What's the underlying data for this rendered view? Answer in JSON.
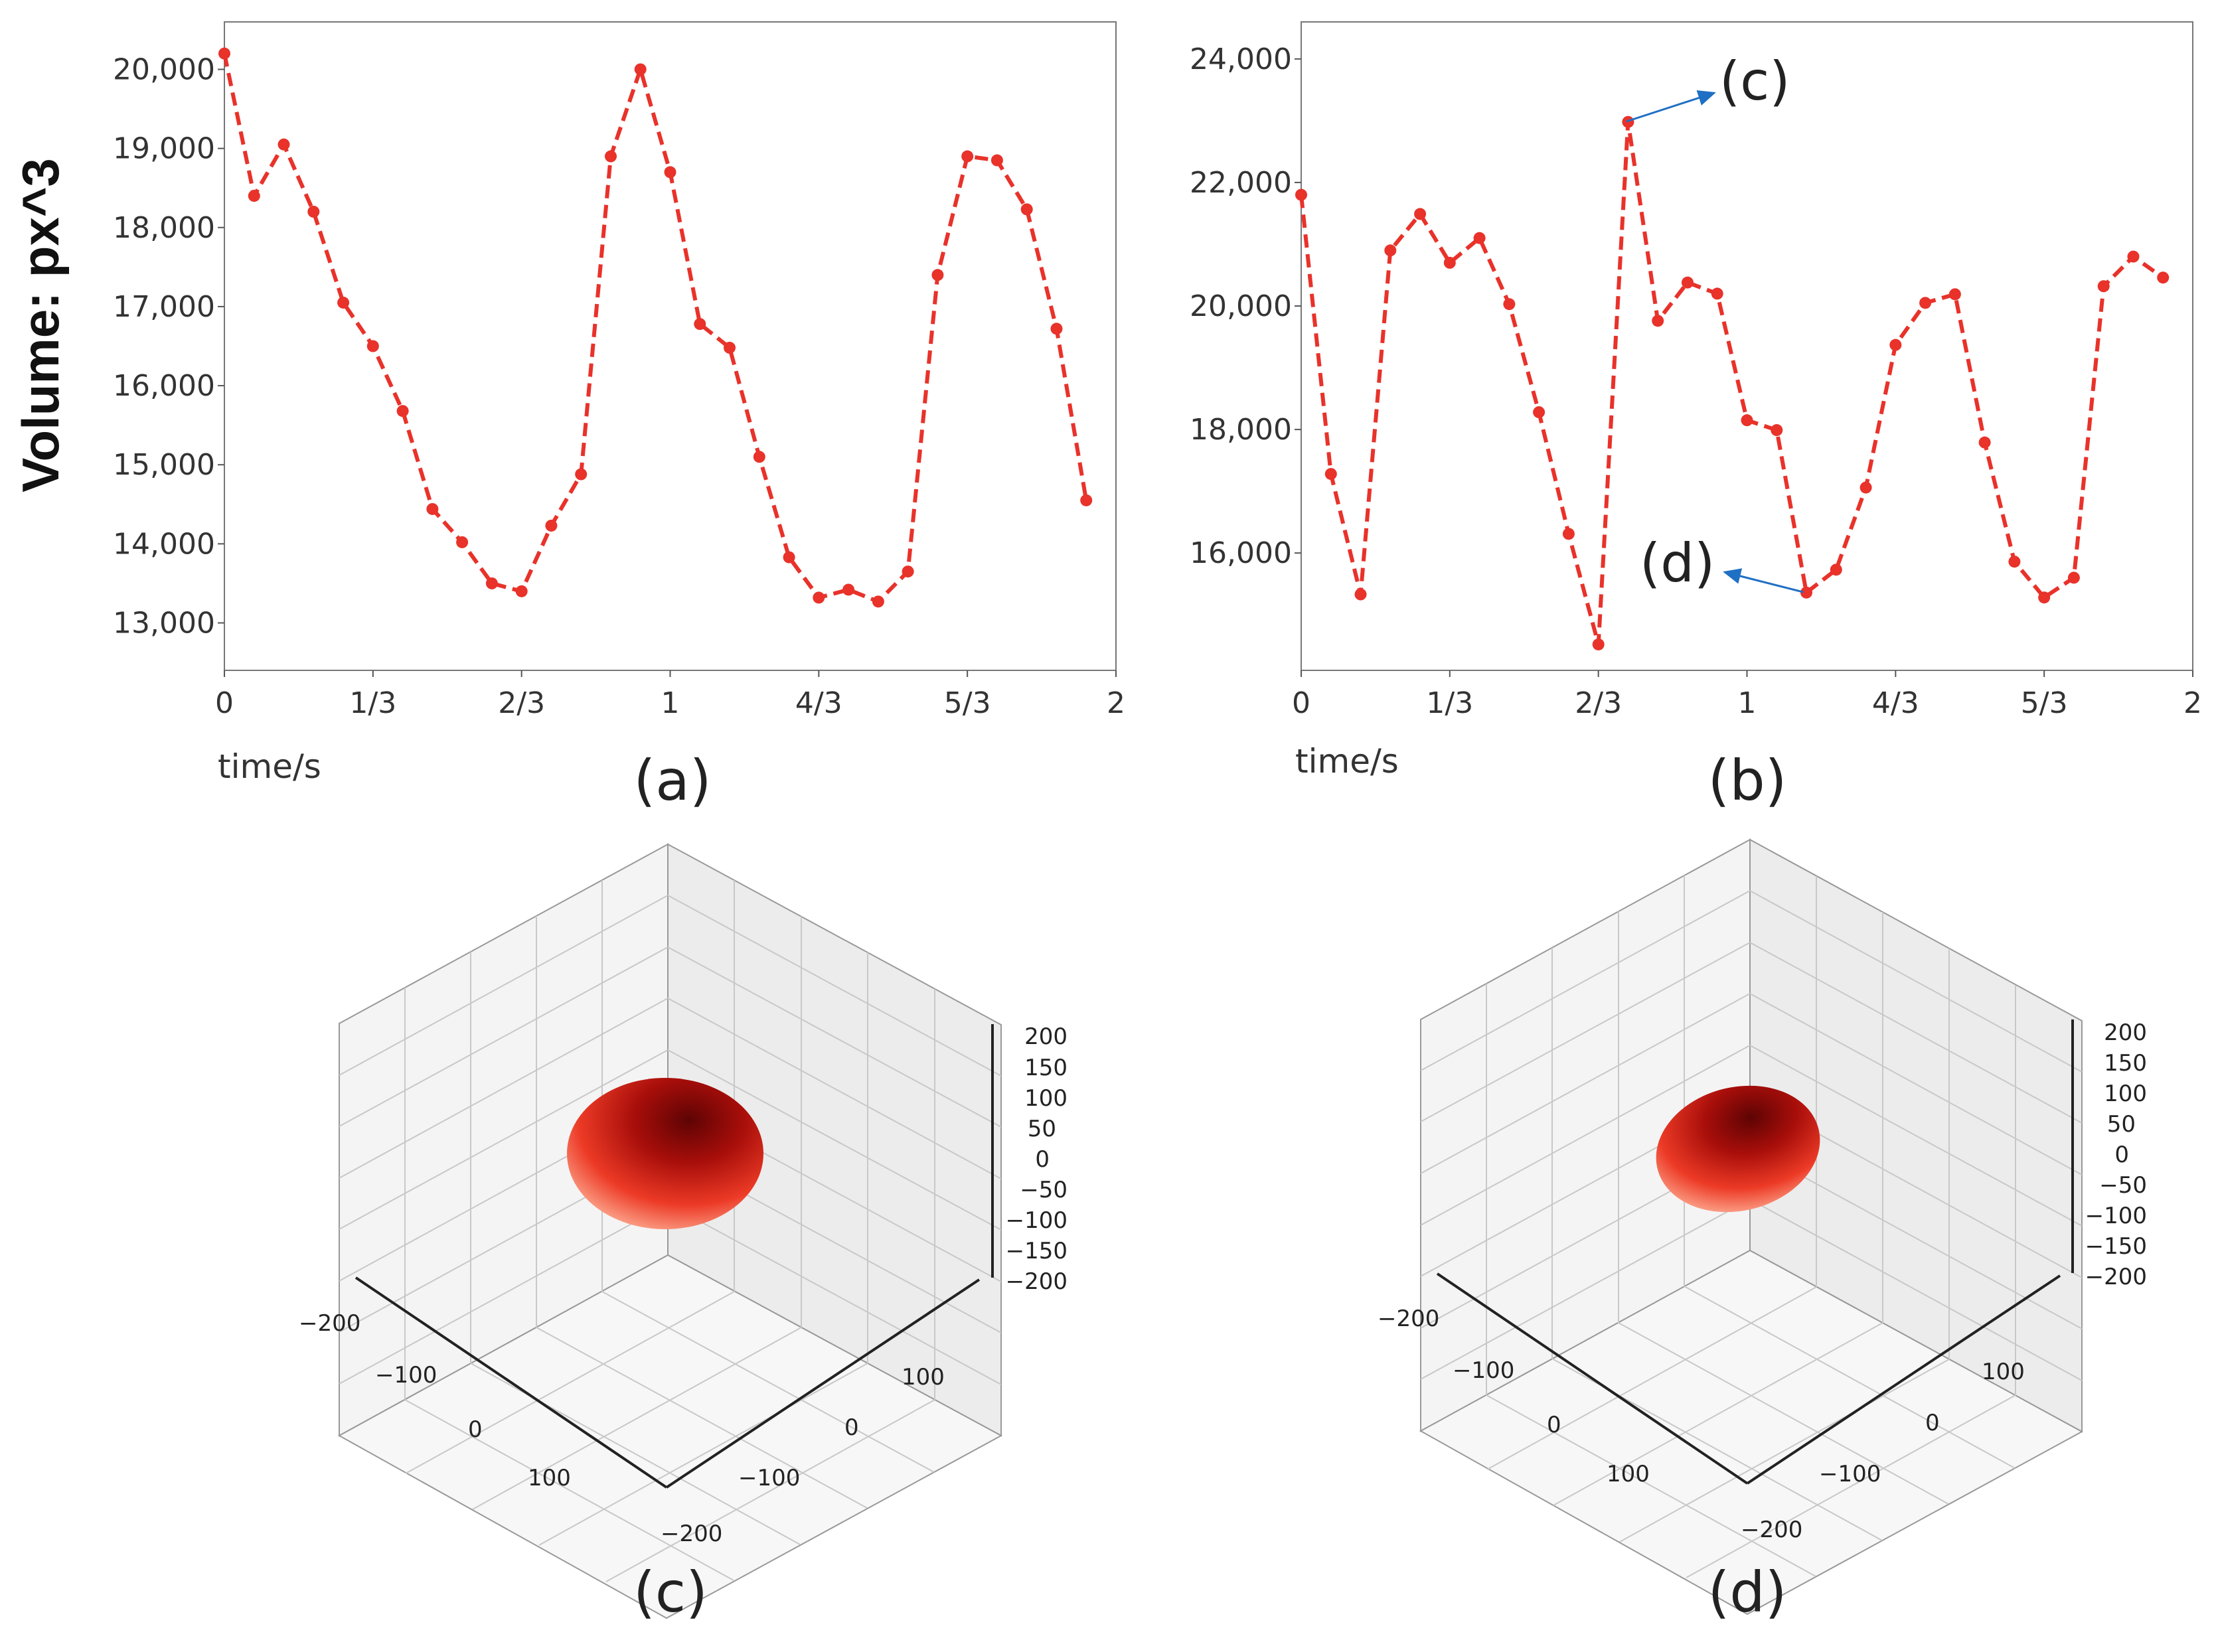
{
  "chart_data": [
    {
      "type": "line",
      "panel": "(a)",
      "caption": "(a)",
      "xlabel": "time/s",
      "ylabel": "Volume: px^3",
      "xlim": [
        0,
        2
      ],
      "ylim": [
        12400,
        20600
      ],
      "xticks": [
        "0",
        "1/3",
        "2/3",
        "1",
        "4/3",
        "5/3",
        "2"
      ],
      "yticks": [
        "13,000",
        "14,000",
        "15,000",
        "16,000",
        "17,000",
        "18,000",
        "19,000",
        "20,000"
      ],
      "ytick_values": [
        13000,
        14000,
        15000,
        16000,
        17000,
        18000,
        19000,
        20000
      ],
      "series": [
        {
          "color": "#e8322a",
          "style": "dashed",
          "marker": "circle",
          "x": [
            0,
            0.0667,
            0.1333,
            0.2,
            0.2667,
            0.3333,
            0.4,
            0.4667,
            0.5333,
            0.6,
            0.6667,
            0.7333,
            0.8,
            0.8667,
            0.9333,
            1.0,
            1.0667,
            1.1333,
            1.2,
            1.2667,
            1.3333,
            1.4,
            1.4667,
            1.5333,
            1.6,
            1.6667,
            1.7333,
            1.8,
            1.8667,
            1.9333
          ],
          "y": [
            20200,
            18400,
            19050,
            18200,
            17050,
            16500,
            15680,
            14440,
            14020,
            13500,
            13400,
            14230,
            14880,
            18900,
            20000,
            18700,
            16780,
            16480,
            15100,
            13830,
            13320,
            13420,
            13270,
            13650,
            17400,
            18900,
            18850,
            18230,
            16720,
            14550
          ]
        }
      ]
    },
    {
      "type": "line",
      "panel": "(b)",
      "caption": "(b)",
      "xlabel": "time/s",
      "xlim": [
        0,
        2
      ],
      "ylim": [
        14100,
        24600
      ],
      "xticks": [
        "0",
        "1/3",
        "2/3",
        "1",
        "4/3",
        "5/3",
        "2"
      ],
      "yticks": [
        "16,000",
        "18,000",
        "20,000",
        "22,000",
        "24,000"
      ],
      "ytick_values": [
        16000,
        18000,
        20000,
        22000,
        24000
      ],
      "series": [
        {
          "color": "#e8322a",
          "style": "dashed",
          "marker": "circle",
          "x": [
            0,
            0.0667,
            0.1333,
            0.2,
            0.2667,
            0.3333,
            0.4,
            0.4667,
            0.5333,
            0.6,
            0.6667,
            0.7333,
            0.8,
            0.8667,
            0.9333,
            1.0,
            1.0667,
            1.1333,
            1.2,
            1.2667,
            1.3333,
            1.4,
            1.4667,
            1.5333,
            1.6,
            1.6667,
            1.7333,
            1.8,
            1.8667,
            1.9333
          ],
          "y": [
            21800,
            17280,
            15330,
            20900,
            21490,
            20700,
            21100,
            20030,
            18280,
            16310,
            14520,
            22980,
            19760,
            20380,
            20200,
            18150,
            17990,
            15360,
            15730,
            17060,
            19370,
            20050,
            20190,
            17790,
            15860,
            15280,
            15600,
            20320,
            20800,
            20460
          ]
        }
      ],
      "annotations": [
        {
          "label": "(c)",
          "x": 0.7333,
          "y": 22980
        },
        {
          "label": "(d)",
          "x": 1.1333,
          "y": 15360
        }
      ]
    },
    {
      "type": "surface3d",
      "panel": "(c)",
      "caption": "(c)",
      "xticks": [
        "−200",
        "−100",
        "0",
        "100"
      ],
      "yticks": [
        "100",
        "0",
        "−100",
        "−200"
      ],
      "zticks": [
        "200",
        "150",
        "100",
        "50",
        "0",
        "−50",
        "−100",
        "−150",
        "−200"
      ],
      "xlim": [
        -200,
        200
      ],
      "ylim": [
        -200,
        200
      ],
      "zlim": [
        -200,
        200
      ],
      "surface_color": "#e02018"
    },
    {
      "type": "surface3d",
      "panel": "(d)",
      "caption": "(d)",
      "xticks": [
        "−200",
        "−100",
        "0",
        "100"
      ],
      "yticks": [
        "100",
        "0",
        "−100",
        "−200"
      ],
      "zticks": [
        "200",
        "150",
        "100",
        "50",
        "0",
        "−50",
        "−100",
        "−150",
        "−200"
      ],
      "xlim": [
        -200,
        200
      ],
      "ylim": [
        -200,
        200
      ],
      "zlim": [
        -200,
        200
      ],
      "surface_color": "#e02018"
    }
  ],
  "colors": {
    "line": "#e8322a",
    "arrow": "#1f6fc4",
    "axes": "#555555"
  }
}
